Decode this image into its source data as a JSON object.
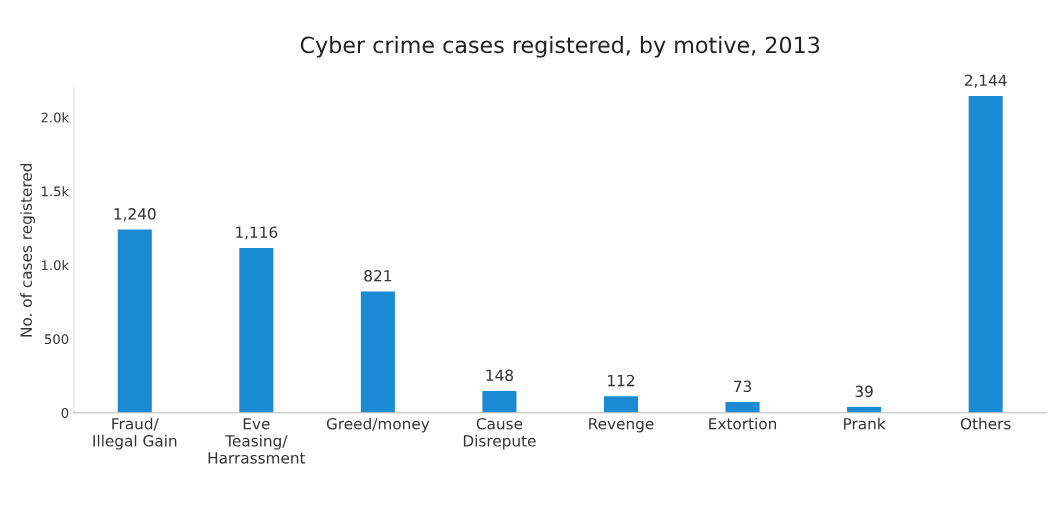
{
  "chart_data": {
    "type": "bar",
    "title": "Cyber crime cases registered, by motive, 2013",
    "ylabel": "No. of cases registered",
    "categories": [
      "Fraud/\nIllegal Gain",
      "Eve\nTeasing/\nHarrassment",
      "Greed/money",
      "Cause\nDisrepute",
      "Revenge",
      "Extortion",
      "Prank",
      "Others"
    ],
    "values": [
      1240,
      1116,
      821,
      148,
      112,
      73,
      39,
      2144
    ],
    "color": "#1a8ad4",
    "ylim": [
      0,
      2200
    ],
    "yticks": [
      0,
      500,
      {
        "value": 1000,
        "label": "1.0k"
      },
      {
        "value": 1500,
        "label": "1.5k"
      },
      {
        "value": 2000,
        "label": "2.0k"
      }
    ],
    "value_labels": [
      "1,240",
      "1,116",
      "821",
      "148",
      "112",
      "73",
      "39",
      "2,144"
    ],
    "grid": false
  }
}
